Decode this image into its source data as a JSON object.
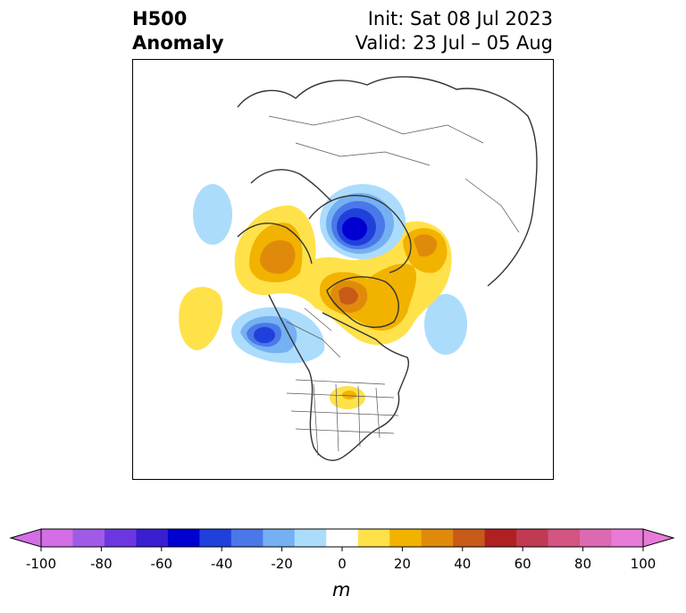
{
  "title": {
    "left_line1": "H500",
    "left_line2": "Anomaly",
    "right_line1": "Init: Sat 08 Jul 2023",
    "right_line2": "Valid: 23 Jul – 05 Aug"
  },
  "colorbar": {
    "unit_label": "m",
    "ticks": [
      "-100",
      "-80",
      "-60",
      "-40",
      "-20",
      "0",
      "20",
      "40",
      "60",
      "80",
      "100"
    ],
    "bins": [
      -100,
      -90,
      -80,
      -70,
      -60,
      -50,
      -40,
      -30,
      -20,
      -10,
      10,
      20,
      30,
      40,
      50,
      60,
      70,
      80,
      90,
      100
    ],
    "colors": [
      "#d36ee6",
      "#a05be6",
      "#6c37e0",
      "#3a1ed2",
      "#0000d0",
      "#2040dc",
      "#4a78e8",
      "#74b0f2",
      "#acdcfc",
      "#ffffff",
      "#ffe14a",
      "#f2b200",
      "#e08a0c",
      "#c85a18",
      "#b02020",
      "#c03a52",
      "#d45482",
      "#dc6ab2",
      "#e87ad8"
    ],
    "extend_low_color": "#d36ee6",
    "extend_high_color": "#e87ad8"
  }
}
